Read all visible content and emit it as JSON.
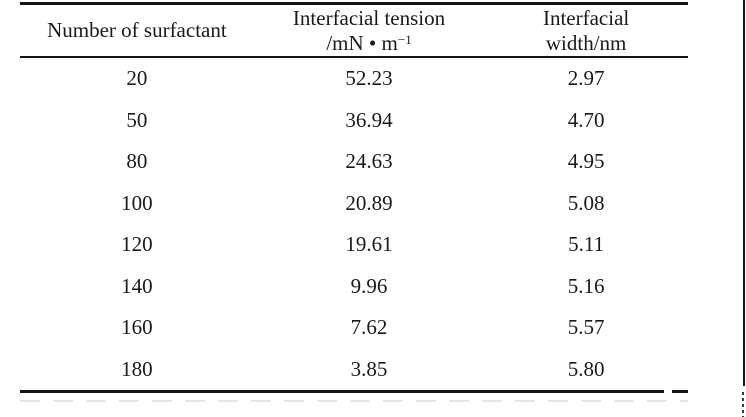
{
  "page": {
    "background": "#ffffff",
    "text_color": "#1a1a1a",
    "rule_color": "#141414"
  },
  "table": {
    "headers": {
      "col1": "Number of surfactant",
      "col2_line1": "Interfacial tension",
      "col2_line2_base": "/mN • m",
      "col2_sup": "−1",
      "col3_line1": "Interfacial",
      "col3_line2": "width/nm"
    },
    "rows": [
      [
        "20",
        "52.23",
        "2.97"
      ],
      [
        "50",
        "36.94",
        "4.70"
      ],
      [
        "80",
        "24.63",
        "4.95"
      ],
      [
        "100",
        "20.89",
        "5.08"
      ],
      [
        "120",
        "19.61",
        "5.11"
      ],
      [
        "140",
        "9.96",
        "5.16"
      ],
      [
        "160",
        "7.62",
        "5.57"
      ],
      [
        "180",
        "3.85",
        "5.80"
      ]
    ]
  }
}
